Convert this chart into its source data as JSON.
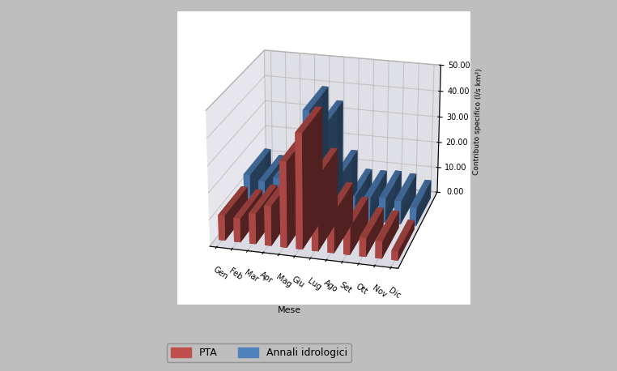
{
  "categories": [
    "Gen",
    "Feb",
    "Mar",
    "Apr",
    "Mag",
    "Giu",
    "Lug",
    "Ago",
    "Set",
    "Ott",
    "Nov",
    "Dic"
  ],
  "pta_values": [
    9.5,
    9.0,
    11.5,
    15.0,
    32.0,
    43.0,
    28.0,
    15.5,
    10.5,
    7.0,
    6.5,
    3.5
  ],
  "annali_values": [
    13.0,
    11.0,
    13.0,
    20.5,
    40.0,
    35.0,
    16.0,
    9.0,
    9.0,
    9.5,
    9.0,
    7.0
  ],
  "pta_color": "#C0504D",
  "annali_color": "#4F81BD",
  "ylabel": "Contributo specifico (l/s km²)",
  "xlabel": "Mese",
  "zlim": [
    0,
    50
  ],
  "zticks": [
    0.0,
    10.0,
    20.0,
    30.0,
    40.0,
    50.0
  ],
  "legend_pta": "PTA",
  "legend_annali": "Annali idrologici",
  "background_color": "#BEBEBE",
  "wall_color_side": "#D8D8E0",
  "wall_color_back": "#E0E0E8",
  "wall_color_floor": "#D0D0D8",
  "axis_fontsize": 8,
  "tick_fontsize": 7,
  "elev": 22,
  "azim": -75
}
